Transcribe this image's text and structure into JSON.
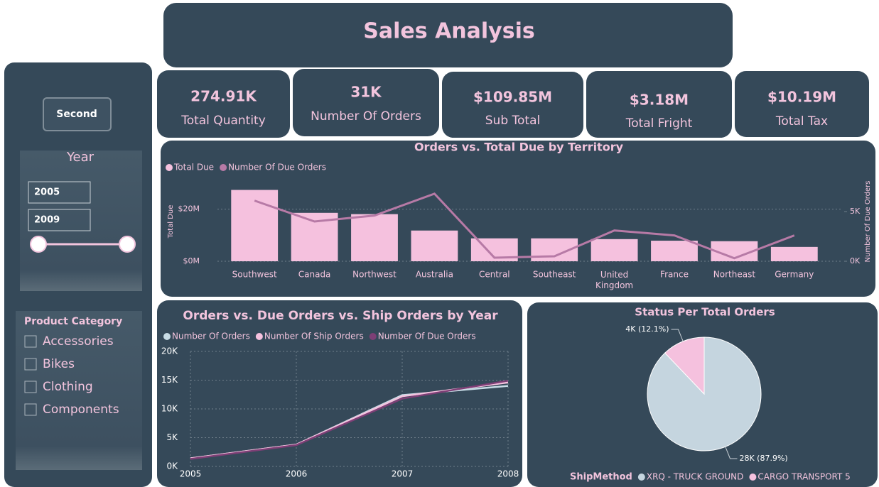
{
  "header": {
    "title": "Sales Analysis"
  },
  "kpis": [
    {
      "value": "274.91K",
      "label": "Total Quantity"
    },
    {
      "value": "31K",
      "label": "Number Of Orders"
    },
    {
      "value": "$109.85M",
      "label": "Sub Total"
    },
    {
      "value": "$3.18M",
      "label": "Total Fright"
    },
    {
      "value": "$10.19M",
      "label": "Total Tax"
    }
  ],
  "filters": {
    "button": "Second",
    "year": {
      "title": "Year",
      "from": "2005",
      "to": "2009"
    },
    "product_category": {
      "title": "Product Category",
      "options": [
        "Accessories",
        "Bikes",
        "Clothing",
        "Components"
      ]
    }
  },
  "chart_data": [
    {
      "type": "bar",
      "title": "Orders vs. Total Due by Territory",
      "y_label": "Total Due",
      "y2_label": "Number Of Due Orders",
      "categories": [
        "Southwest",
        "Canada",
        "Northwest",
        "Australia",
        "Central",
        "Southeast",
        "United Kingdom",
        "France",
        "Northeast",
        "Germany"
      ],
      "series": [
        {
          "name": "Total Due",
          "color": "#f5c1de",
          "values": [
            27400000,
            18600000,
            18100000,
            11800000,
            8800000,
            8800000,
            8500000,
            7900000,
            7700000,
            5500000
          ]
        },
        {
          "name": "Number Of Due Orders",
          "color": "#b77aa6",
          "type": "line",
          "axis": "y2",
          "values": [
            6100,
            4000,
            4600,
            6800,
            360,
            500,
            3100,
            2600,
            300,
            2600
          ]
        }
      ],
      "ylim": [
        0,
        30000000
      ],
      "yticks": [
        {
          "value": 0,
          "label": "$0M"
        },
        {
          "value": 20000000,
          "label": "$20M"
        }
      ],
      "y2lim": [
        0,
        7860
      ],
      "y2ticks": [
        {
          "value": 0,
          "label": "0K"
        },
        {
          "value": 5000,
          "label": "5K"
        }
      ],
      "grid": true
    },
    {
      "type": "line",
      "title": "Orders vs. Due Orders vs. Ship Orders by Year",
      "x": [
        2005,
        2006,
        2007,
        2008
      ],
      "xlim": [
        2005,
        2008
      ],
      "xticks": [
        2005,
        2006,
        2007,
        2008
      ],
      "series": [
        {
          "name": "Number Of Orders",
          "color": "#c8dce6",
          "values": [
            1400,
            3800,
            12400,
            14000
          ]
        },
        {
          "name": "Number Of Ship Orders",
          "color": "#f5c1de",
          "values": [
            1400,
            3800,
            12200,
            14600
          ]
        },
        {
          "name": "Number Of Due Orders",
          "color": "#7e3f76",
          "values": [
            1300,
            3700,
            11800,
            14900
          ]
        }
      ],
      "ylim": [
        0,
        20000
      ],
      "yticks": [
        {
          "value": 0,
          "label": "0K"
        },
        {
          "value": 5000,
          "label": "5K"
        },
        {
          "value": 10000,
          "label": "10K"
        },
        {
          "value": 15000,
          "label": "15K"
        },
        {
          "value": 20000,
          "label": "20K"
        }
      ],
      "grid": true
    },
    {
      "type": "pie",
      "title": "Status Per Total Orders",
      "legend_title": "ShipMethod",
      "categories": [
        "XRQ - TRUCK GROUND",
        "CARGO TRANSPORT 5"
      ],
      "colors": [
        "#c5d5df",
        "#f5c1de"
      ],
      "values": [
        27500,
        3800
      ],
      "value_labels": [
        "28K (87.9%)",
        "4K (12.1%)"
      ]
    }
  ]
}
